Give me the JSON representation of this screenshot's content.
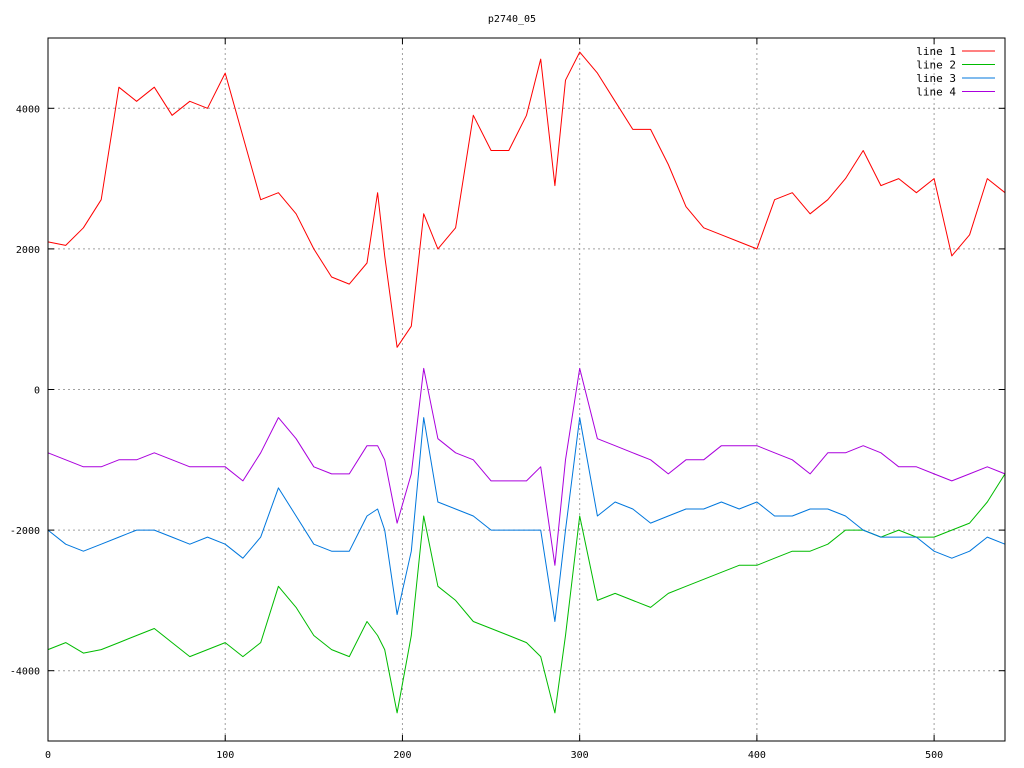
{
  "chart_data": {
    "type": "line",
    "title": "p2740_05",
    "xlabel": "",
    "ylabel": "",
    "xlim": [
      0,
      540
    ],
    "ylim": [
      -5000,
      5000
    ],
    "x_ticks": [
      0,
      100,
      200,
      300,
      400,
      500
    ],
    "y_ticks": [
      -4000,
      -2000,
      0,
      2000,
      4000
    ],
    "grid": true,
    "legend_position": "top-right",
    "x": [
      0,
      10,
      20,
      30,
      40,
      50,
      60,
      70,
      80,
      90,
      100,
      110,
      120,
      130,
      140,
      150,
      160,
      170,
      180,
      186,
      190,
      197,
      205,
      212,
      220,
      230,
      240,
      250,
      260,
      270,
      278,
      286,
      292,
      300,
      310,
      320,
      330,
      340,
      350,
      360,
      370,
      380,
      390,
      400,
      410,
      420,
      430,
      440,
      450,
      460,
      470,
      480,
      490,
      500,
      510,
      520,
      530,
      540
    ],
    "series": [
      {
        "name": "line 1",
        "color": "#ff0000",
        "values": [
          2100,
          2050,
          2300,
          2700,
          4300,
          4100,
          4300,
          3900,
          4100,
          4000,
          4500,
          3600,
          2700,
          2800,
          2500,
          2000,
          1600,
          1500,
          1800,
          2800,
          1900,
          600,
          900,
          2500,
          2000,
          2300,
          3900,
          3400,
          3400,
          3900,
          4700,
          2900,
          4400,
          4800,
          4500,
          4100,
          3700,
          3700,
          3200,
          2600,
          2300,
          2200,
          2100,
          2000,
          2700,
          2800,
          2500,
          2700,
          3000,
          3400,
          2900,
          3000,
          2800,
          3000,
          1900,
          2200,
          3000,
          2800
        ]
      },
      {
        "name": "line 2",
        "color": "#00bb00",
        "values": [
          -3700,
          -3600,
          -3750,
          -3700,
          -3600,
          -3500,
          -3400,
          -3600,
          -3800,
          -3700,
          -3600,
          -3800,
          -3600,
          -2800,
          -3100,
          -3500,
          -3700,
          -3800,
          -3300,
          -3500,
          -3700,
          -4600,
          -3500,
          -1800,
          -2800,
          -3000,
          -3300,
          -3400,
          -3500,
          -3600,
          -3800,
          -4600,
          -3500,
          -1800,
          -3000,
          -2900,
          -3000,
          -3100,
          -2900,
          -2800,
          -2700,
          -2600,
          -2500,
          -2500,
          -2400,
          -2300,
          -2300,
          -2200,
          -2000,
          -2000,
          -2100,
          -2000,
          -2100,
          -2100,
          -2000,
          -1900,
          -1600,
          -1200
        ]
      },
      {
        "name": "line 3",
        "color": "#0077dd",
        "values": [
          -2000,
          -2200,
          -2300,
          -2200,
          -2100,
          -2000,
          -2000,
          -2100,
          -2200,
          -2100,
          -2200,
          -2400,
          -2100,
          -1400,
          -1800,
          -2200,
          -2300,
          -2300,
          -1800,
          -1700,
          -2000,
          -3200,
          -2300,
          -400,
          -1600,
          -1700,
          -1800,
          -2000,
          -2000,
          -2000,
          -2000,
          -3300,
          -2000,
          -400,
          -1800,
          -1600,
          -1700,
          -1900,
          -1800,
          -1700,
          -1700,
          -1600,
          -1700,
          -1600,
          -1800,
          -1800,
          -1700,
          -1700,
          -1800,
          -2000,
          -2100,
          -2100,
          -2100,
          -2300,
          -2400,
          -2300,
          -2100,
          -2200
        ]
      },
      {
        "name": "line 4",
        "color": "#aa00dd",
        "values": [
          -900,
          -1000,
          -1100,
          -1100,
          -1000,
          -1000,
          -900,
          -1000,
          -1100,
          -1100,
          -1100,
          -1300,
          -900,
          -400,
          -700,
          -1100,
          -1200,
          -1200,
          -800,
          -800,
          -1000,
          -1900,
          -1200,
          300,
          -700,
          -900,
          -1000,
          -1300,
          -1300,
          -1300,
          -1100,
          -2500,
          -1000,
          300,
          -700,
          -800,
          -900,
          -1000,
          -1200,
          -1000,
          -1000,
          -800,
          -800,
          -800,
          -900,
          -1000,
          -1200,
          -900,
          -900,
          -800,
          -900,
          -1100,
          -1100,
          -1200,
          -1300,
          -1200,
          -1100,
          -1200
        ]
      }
    ]
  }
}
